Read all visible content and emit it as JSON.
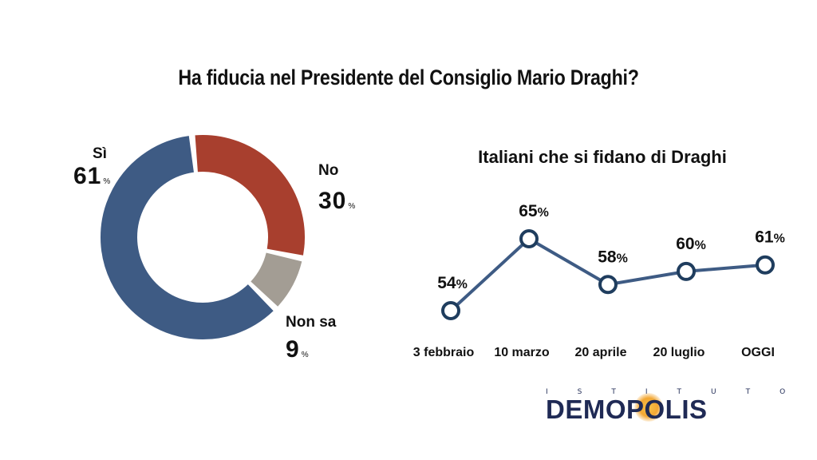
{
  "title": "Ha fiducia nel Presidente del Consiglio Mario Draghi?",
  "chart_data": [
    {
      "type": "pie",
      "style": "donut",
      "slices": [
        {
          "label": "Sì",
          "value": 61,
          "value_text": "61",
          "unit": "%",
          "color": "#3e5b84"
        },
        {
          "label": "No",
          "value": 30,
          "value_text": "30",
          "unit": "%",
          "color": "#a83f2e"
        },
        {
          "label": "Non sa",
          "value": 9,
          "value_text": "9",
          "unit": "%",
          "color": "#a39d94"
        }
      ]
    },
    {
      "type": "line",
      "title": "Italiani che si fidano di Draghi",
      "categories": [
        "3 febbraio",
        "10 marzo",
        "20 aprile",
        "20 luglio",
        "OGGI"
      ],
      "values": [
        54,
        65,
        58,
        60,
        61
      ],
      "value_labels": [
        "54",
        "65",
        "58",
        "60",
        "61"
      ],
      "unit": "%",
      "line_color": "#3e5b84"
    }
  ],
  "logo": {
    "top": "ISTITUTO",
    "main": "DEMOPOLIS"
  }
}
